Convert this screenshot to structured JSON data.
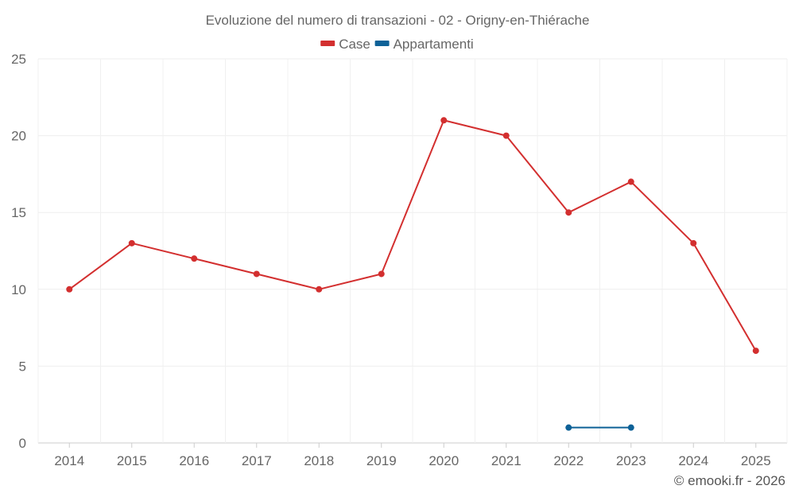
{
  "chart_data": {
    "type": "line",
    "title": "Evoluzione del numero di transazioni - 02 - Origny-en-Thiérache",
    "categories": [
      "2014",
      "2015",
      "2016",
      "2017",
      "2018",
      "2019",
      "2020",
      "2021",
      "2022",
      "2023",
      "2024",
      "2025"
    ],
    "series": [
      {
        "name": "Case",
        "color": "#d32f2f",
        "values": [
          10,
          13,
          12,
          11,
          10,
          11,
          21,
          20,
          15,
          17,
          13,
          6
        ]
      },
      {
        "name": "Appartamenti",
        "color": "#0d6197",
        "values": [
          null,
          null,
          null,
          null,
          null,
          null,
          null,
          null,
          1,
          1,
          null,
          null
        ]
      }
    ],
    "ylim": [
      0,
      25
    ],
    "yticks": [
      0,
      5,
      10,
      15,
      20,
      25
    ],
    "grid": true,
    "legend_position": "top-center",
    "xlabel": "",
    "ylabel": ""
  },
  "credit": "© emooki.fr - 2026"
}
